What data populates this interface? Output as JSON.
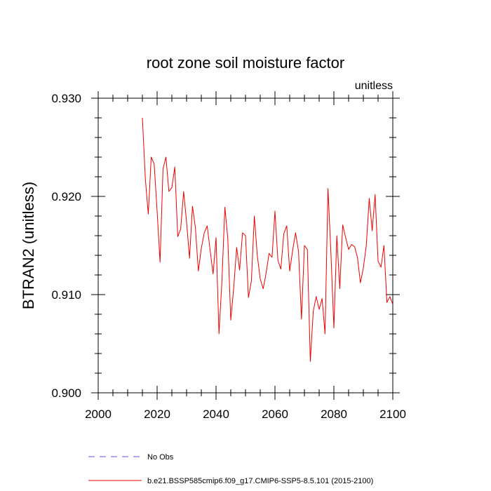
{
  "chart_data": {
    "type": "line",
    "title": "root zone soil moisture factor",
    "units_label": "unitless",
    "xlabel": "",
    "ylabel": "BTRAN2  (unitless)",
    "xlim": [
      2000,
      2100
    ],
    "ylim": [
      0.9,
      0.93
    ],
    "x_ticks": [
      2000,
      2020,
      2040,
      2060,
      2080,
      2100
    ],
    "x_tick_labels": [
      "2000",
      "2020",
      "2040",
      "2060",
      "2080",
      "2100"
    ],
    "y_ticks": [
      0.9,
      0.91,
      0.92,
      0.93
    ],
    "y_tick_labels": [
      "0.900",
      "0.910",
      "0.920",
      "0.930"
    ],
    "grid": false,
    "legend_position": "bottom-left",
    "legend": [
      {
        "label": "No Obs",
        "color": "#5555ee",
        "style": "dashed"
      },
      {
        "label": "b.e21.BSSP585cmip6.f09_g17.CMIP6-SSP5-8.5.101 (2015-2100)",
        "color": "#ee0000",
        "style": "solid"
      }
    ],
    "series": [
      {
        "name": "b.e21.BSSP585cmip6.f09_g17.CMIP6-SSP5-8.5.101 (2015-2100)",
        "color": "#ee0000",
        "x": [
          2015,
          2016,
          2017,
          2018,
          2019,
          2020,
          2021,
          2022,
          2023,
          2024,
          2025,
          2026,
          2027,
          2028,
          2029,
          2030,
          2031,
          2032,
          2033,
          2034,
          2035,
          2036,
          2037,
          2038,
          2039,
          2040,
          2041,
          2042,
          2043,
          2044,
          2045,
          2046,
          2047,
          2048,
          2049,
          2050,
          2051,
          2052,
          2053,
          2054,
          2055,
          2056,
          2057,
          2058,
          2059,
          2060,
          2061,
          2062,
          2063,
          2064,
          2065,
          2066,
          2067,
          2068,
          2069,
          2070,
          2071,
          2072,
          2073,
          2074,
          2075,
          2076,
          2077,
          2078,
          2079,
          2080,
          2081,
          2082,
          2083,
          2084,
          2085,
          2086,
          2087,
          2088,
          2089,
          2090,
          2091,
          2092,
          2093,
          2094,
          2095,
          2096,
          2097,
          2098,
          2099,
          2100
        ],
        "y": [
          0.928,
          0.9218,
          0.9182,
          0.924,
          0.9233,
          0.9185,
          0.9133,
          0.9228,
          0.924,
          0.9205,
          0.9209,
          0.923,
          0.9159,
          0.9167,
          0.9205,
          0.9174,
          0.9137,
          0.919,
          0.9168,
          0.9124,
          0.9147,
          0.9163,
          0.917,
          0.9145,
          0.9121,
          0.9158,
          0.906,
          0.9114,
          0.9189,
          0.9157,
          0.9074,
          0.9107,
          0.9148,
          0.9125,
          0.9163,
          0.916,
          0.9097,
          0.9114,
          0.918,
          0.914,
          0.9116,
          0.9106,
          0.9122,
          0.9142,
          0.9138,
          0.9185,
          0.9135,
          0.9126,
          0.9162,
          0.917,
          0.9124,
          0.9145,
          0.9163,
          0.9144,
          0.9075,
          0.915,
          0.9146,
          0.9032,
          0.9083,
          0.9098,
          0.9085,
          0.9096,
          0.906,
          0.9208,
          0.9142,
          0.9066,
          0.916,
          0.9106,
          0.9171,
          0.9158,
          0.9146,
          0.9151,
          0.9149,
          0.9138,
          0.9112,
          0.9127,
          0.915,
          0.9198,
          0.9165,
          0.9202,
          0.9134,
          0.9128,
          0.915,
          0.9092,
          0.9098,
          0.909
        ]
      }
    ]
  }
}
